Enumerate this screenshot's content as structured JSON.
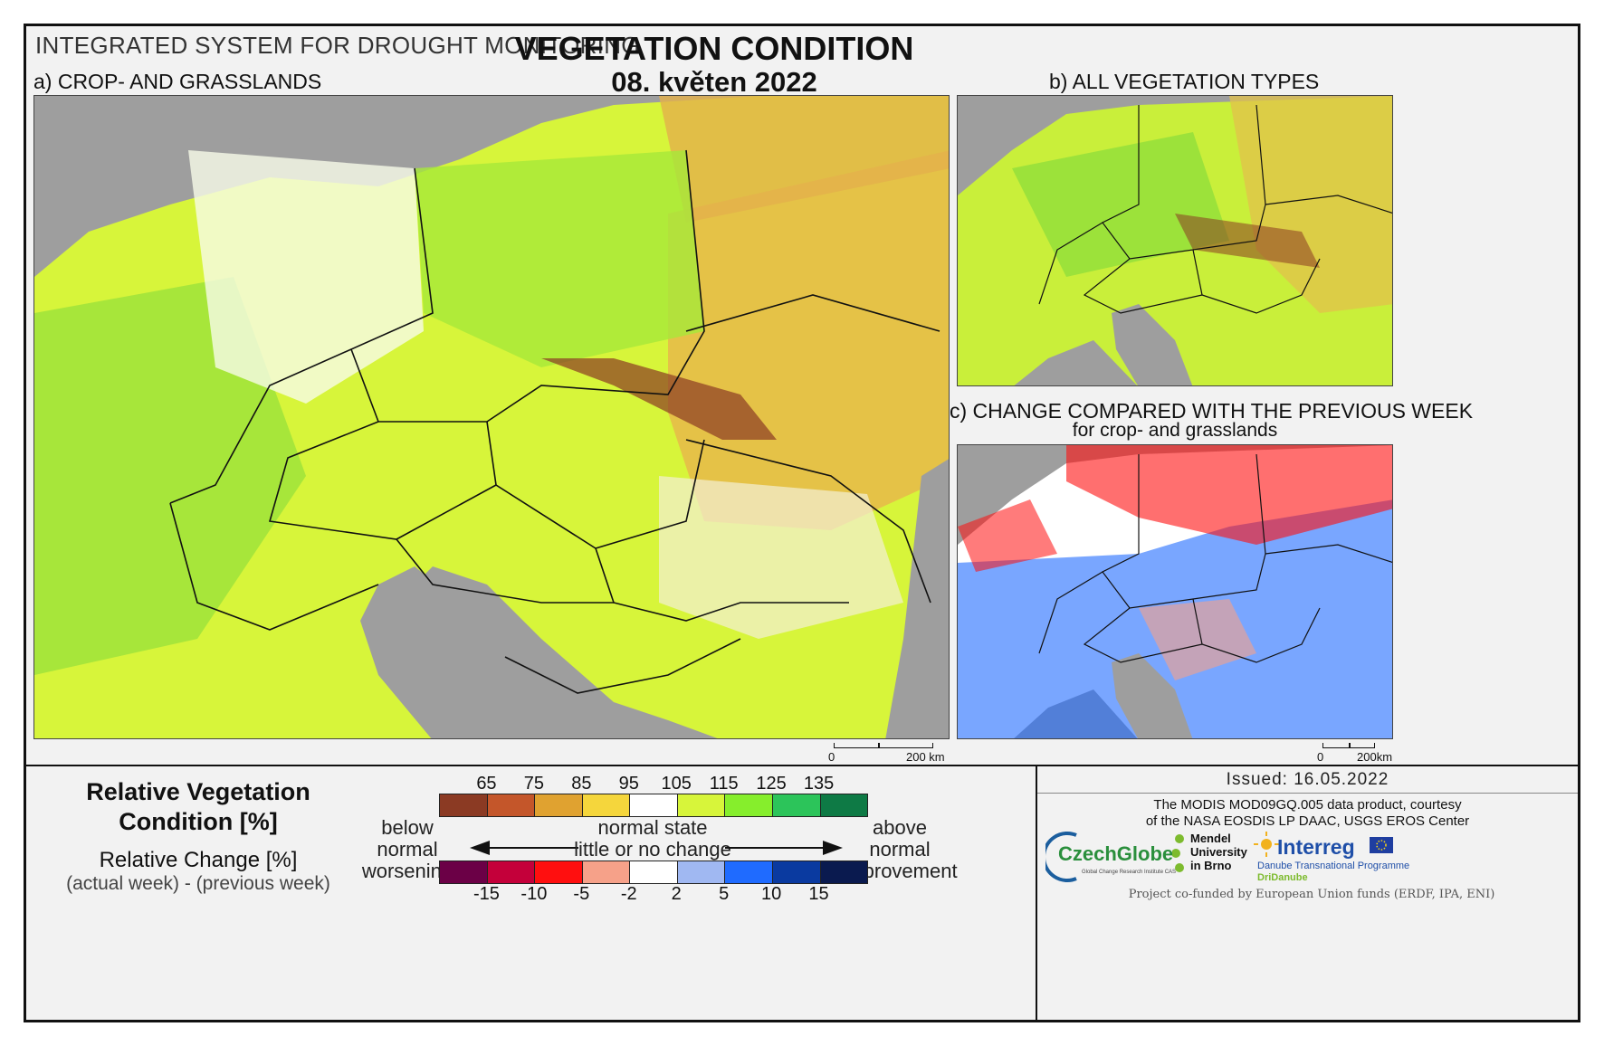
{
  "header": {
    "system": "INTEGRATED SYSTEM FOR DROUGHT MONITORING",
    "title": "VEGETATION CONDITION",
    "date": "08. květen 2022"
  },
  "panels": {
    "a": {
      "label": "a) CROP- AND GRASSLANDS"
    },
    "b": {
      "label": "b) ALL VEGETATION TYPES"
    },
    "c": {
      "label": "c) CHANGE COMPARED WITH THE PREVIOUS WEEK",
      "sublabel": "for crop- and grasslands"
    }
  },
  "scalebar_main": {
    "zero": "0",
    "dist": "200 km"
  },
  "scalebar_c": {
    "zero": "0",
    "dist": "200km"
  },
  "legend": {
    "rvc_title": "Relative Vegetation Condition [%]",
    "rvc_title_line1": "Relative Vegetation",
    "rvc_title_line2": "Condition [%]",
    "rc_title": "Relative Change [%]",
    "rc_sub": "(actual week) - (previous week)",
    "rvc_ticks": [
      "65",
      "75",
      "85",
      "95",
      "105",
      "115",
      "125",
      "135"
    ],
    "rvc_colors": [
      "#8b3a23",
      "#c4562a",
      "#e0a230",
      "#f5d63c",
      "#ffffff",
      "#d7f53a",
      "#86ee2c",
      "#2cc45a",
      "#0e7a45"
    ],
    "rc_ticks": [
      "-15",
      "-10",
      "-5",
      "-2",
      "2",
      "5",
      "10",
      "15"
    ],
    "rc_colors": [
      "#6b0046",
      "#c4003a",
      "#ff0f0f",
      "#f6a189",
      "#ffffff",
      "#a0b8f2",
      "#1f6bff",
      "#0a3aa0",
      "#0a1a4f"
    ],
    "below_1": "below normal",
    "below_2": "worsening",
    "normal_1": "normal state",
    "normal_2": "little or no change",
    "above_1": "above normal",
    "above_2": "improvement"
  },
  "footer": {
    "issued": "Issued: 16.05.2022",
    "credit_1": "The MODIS MOD09GQ.005 data product, courtesy",
    "credit_2": "of the NASA EOSDIS LP DAAC, USGS EROS Center",
    "logo_czechglobe": "CzechGlobe",
    "logo_czechglobe_sub": "Global Change Research Institute CAS",
    "logo_mendel_1": "Mendel",
    "logo_mendel_2": "University",
    "logo_mendel_3": "in Brno",
    "logo_interreg": "Interreg",
    "logo_interreg_sub": "Danube Transnational Programme",
    "logo_dridanube": "DriDanube",
    "funded": "Project co-funded by European Union funds (ERDF, IPA, ENI)"
  },
  "colors": {
    "sea": "#9e9e9e",
    "frame": "#111111",
    "background": "#f2f2f2"
  }
}
